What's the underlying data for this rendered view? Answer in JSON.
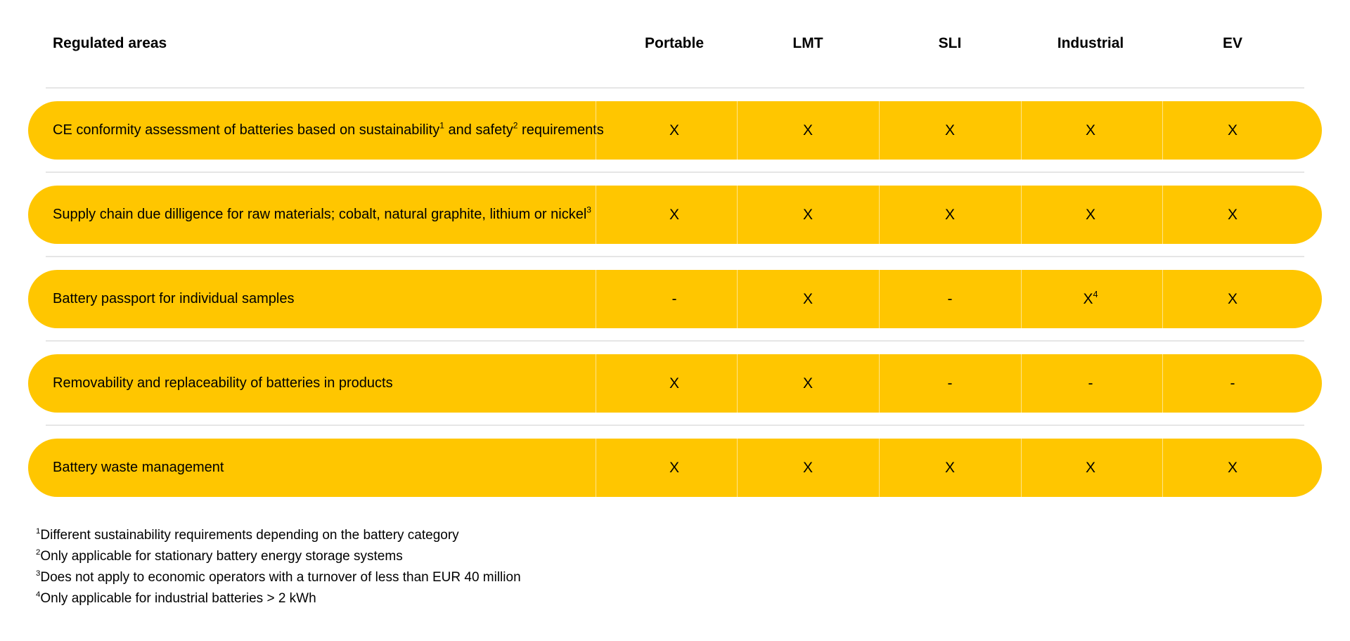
{
  "header": {
    "area_label": "Regulated areas",
    "columns": [
      "Portable",
      "LMT",
      "SLI",
      "Industrial",
      "EV"
    ]
  },
  "rows": [
    {
      "area": "CE conformity assessment of batteries based on sustainability",
      "sup1": "1",
      "area_mid": " and safety",
      "sup2": "2",
      "area_end": " requirements",
      "values": [
        "X",
        "X",
        "X",
        "X",
        "X"
      ]
    },
    {
      "area": "Supply chain due dilligence for raw materials; cobalt, natural graphite, lithium or nickel",
      "sup1": "3",
      "values": [
        "X",
        "X",
        "X",
        "X",
        "X"
      ]
    },
    {
      "area": "Battery passport for individual samples",
      "values": [
        "-",
        "X",
        "-",
        "X",
        "X"
      ],
      "industrial_sup": "4"
    },
    {
      "area": "Removability and replaceability of batteries in products",
      "values": [
        "X",
        "X",
        "-",
        "-",
        "-"
      ]
    },
    {
      "area": "Battery waste management",
      "values": [
        "X",
        "X",
        "X",
        "X",
        "X"
      ]
    }
  ],
  "footnotes": [
    {
      "num": "1",
      "text": "Different sustainability requirements depending on the battery category"
    },
    {
      "num": "2",
      "text": "Only applicable for stationary battery energy storage systems"
    },
    {
      "num": "3",
      "text": "Does not apply to economic operators with a turnover of less than EUR 40 million"
    },
    {
      "num": "4",
      "text": "Only applicable for industrial batteries > 2 kWh"
    }
  ],
  "colors": {
    "row_fill": "#FFC600",
    "separator": "#E6E6E6"
  }
}
